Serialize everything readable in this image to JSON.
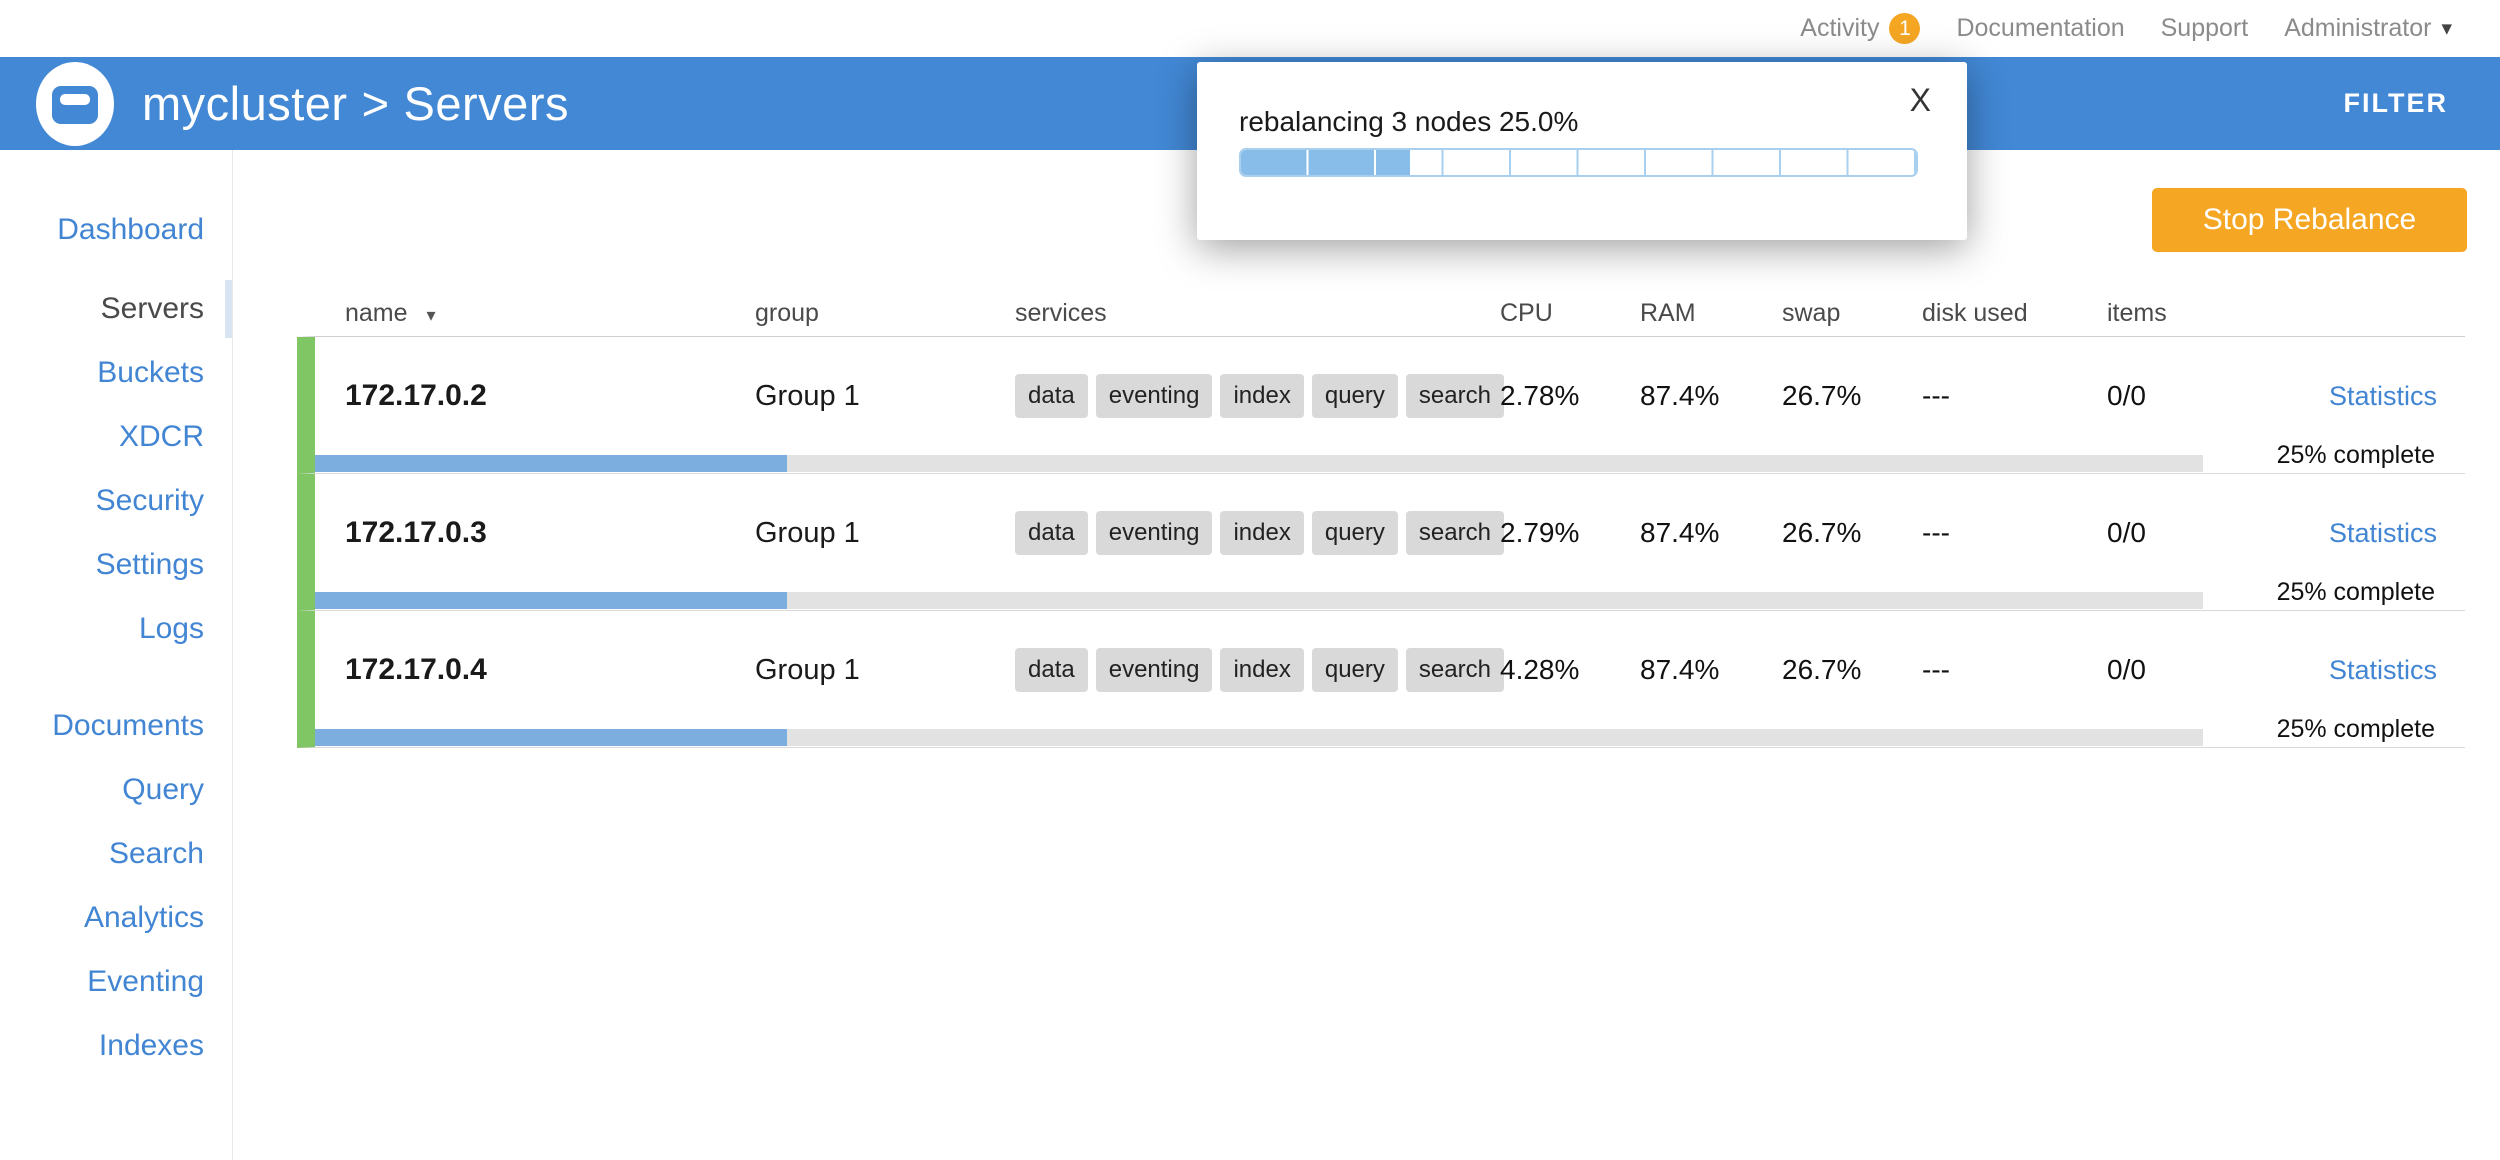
{
  "colors": {
    "header_blue": "#4288d5",
    "link_blue": "#4285d3",
    "orange": "#f5a623",
    "healthy_green": "#80c664",
    "row_progress_blue": "#7cafe0",
    "popup_fill_blue": "#88bde9"
  },
  "icons": {
    "user_caret": "▾",
    "sort_caret": "▾",
    "close": "X"
  },
  "topbar": {
    "activity": {
      "label": "Activity",
      "badge": "1"
    },
    "documentation_label": "Documentation",
    "support_label": "Support",
    "user_label": "Administrator"
  },
  "header": {
    "breadcrumb": {
      "cluster": "mycluster",
      "separator": ">",
      "page": "Servers"
    },
    "filter_label": "FILTER"
  },
  "rebalance_popup": {
    "message": "rebalancing 3 nodes 25.0%",
    "progress_percent": 25
  },
  "sidebar": {
    "groups": [
      {
        "items": [
          {
            "label": "Dashboard"
          }
        ]
      },
      {
        "items": [
          {
            "label": "Servers"
          },
          {
            "label": "Buckets"
          },
          {
            "label": "XDCR"
          },
          {
            "label": "Security"
          },
          {
            "label": "Settings"
          },
          {
            "label": "Logs"
          }
        ]
      },
      {
        "items": [
          {
            "label": "Documents"
          },
          {
            "label": "Query"
          },
          {
            "label": "Search"
          },
          {
            "label": "Analytics"
          },
          {
            "label": "Eventing"
          },
          {
            "label": "Indexes"
          }
        ]
      }
    ],
    "active_item": "Servers"
  },
  "actions": {
    "stop_rebalance_label": "Stop Rebalance"
  },
  "table": {
    "columns": [
      "name",
      "group",
      "services",
      "CPU",
      "RAM",
      "swap",
      "disk used",
      "items"
    ],
    "rows": [
      {
        "name": "172.17.0.2",
        "group": "Group 1",
        "services": [
          "data",
          "eventing",
          "index",
          "query",
          "search"
        ],
        "cpu": "2.78%",
        "ram": "87.4%",
        "swap": "26.7%",
        "disk_used": "---",
        "items": "0/0",
        "statistics_label": "Statistics",
        "progress_percent": 25,
        "progress_label": "25% complete"
      },
      {
        "name": "172.17.0.3",
        "group": "Group 1",
        "services": [
          "data",
          "eventing",
          "index",
          "query",
          "search"
        ],
        "cpu": "2.79%",
        "ram": "87.4%",
        "swap": "26.7%",
        "disk_used": "---",
        "items": "0/0",
        "statistics_label": "Statistics",
        "progress_percent": 25,
        "progress_label": "25% complete"
      },
      {
        "name": "172.17.0.4",
        "group": "Group 1",
        "services": [
          "data",
          "eventing",
          "index",
          "query",
          "search"
        ],
        "cpu": "4.28%",
        "ram": "87.4%",
        "swap": "26.7%",
        "disk_used": "---",
        "items": "0/0",
        "statistics_label": "Statistics",
        "progress_percent": 25,
        "progress_label": "25% complete"
      }
    ]
  }
}
